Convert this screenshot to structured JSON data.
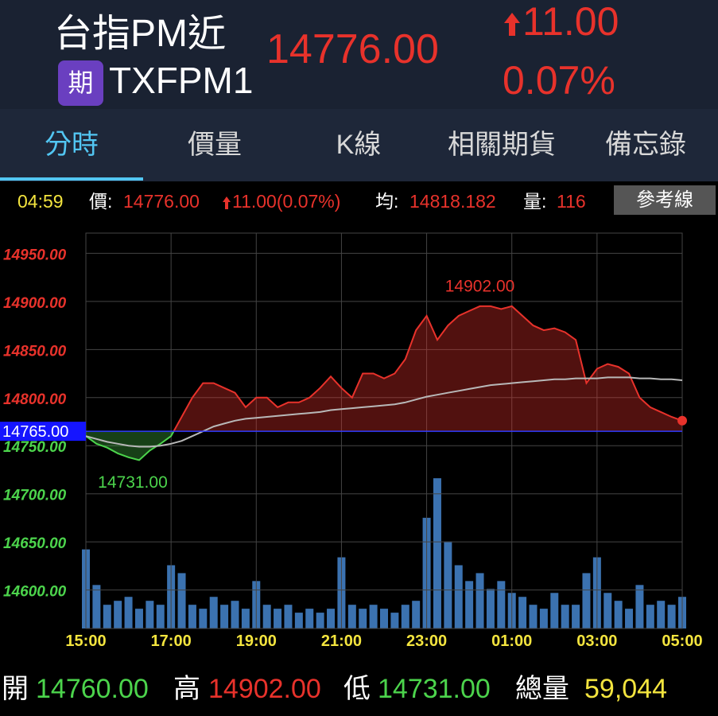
{
  "header": {
    "name": "台指PM近",
    "badge": "期",
    "code": "TXFPM1",
    "price": "14776.00",
    "change": "11.00",
    "change_pct": "0.07%"
  },
  "tabs": [
    "分時",
    "價量",
    "K線",
    "相關期貨",
    "備忘錄"
  ],
  "info": {
    "time": "04:59",
    "price_label": "價:",
    "price": "14776.00",
    "change": "11.00(0.07%)",
    "avg_label": "均:",
    "avg": "14818.182",
    "vol_label": "量:",
    "vol": "116",
    "button": "參考線"
  },
  "chart_data": {
    "type": "line",
    "categories": [
      "15:00",
      null,
      null,
      null,
      null,
      null,
      null,
      null,
      "17:00",
      null,
      null,
      null,
      null,
      null,
      null,
      null,
      "19:00",
      null,
      null,
      null,
      null,
      null,
      null,
      null,
      "21:00",
      null,
      null,
      null,
      null,
      null,
      null,
      null,
      "23:00",
      null,
      null,
      null,
      null,
      null,
      null,
      null,
      "01:00",
      null,
      null,
      null,
      null,
      null,
      null,
      null,
      "03:00",
      null,
      null,
      null,
      null,
      null,
      null,
      null,
      "05:00"
    ],
    "values": [
      14760,
      14752,
      14748,
      14742,
      14738,
      14735,
      14745,
      14752,
      14760,
      14780,
      14800,
      14815,
      14815,
      14810,
      14805,
      14790,
      14800,
      14800,
      14790,
      14795,
      14795,
      14800,
      14810,
      14822,
      14810,
      14800,
      14825,
      14825,
      14820,
      14825,
      14840,
      14870,
      14885,
      14860,
      14875,
      14885,
      14890,
      14895,
      14895,
      14892,
      14895,
      14885,
      14875,
      14870,
      14872,
      14868,
      14860,
      14815,
      14830,
      14835,
      14832,
      14825,
      14800,
      14790,
      14785,
      14780,
      14776
    ],
    "average_values": [
      14760,
      14757,
      14754,
      14752,
      14750,
      14749,
      14749,
      14750,
      14752,
      14755,
      14760,
      14765,
      14770,
      14773,
      14776,
      14778,
      14779,
      14780,
      14781,
      14782,
      14783,
      14784,
      14785,
      14787,
      14788,
      14789,
      14790,
      14791,
      14792,
      14793,
      14795,
      14798,
      14801,
      14803,
      14805,
      14807,
      14809,
      14811,
      14813,
      14814,
      14815,
      14816,
      14817,
      14818,
      14819,
      14819,
      14820,
      14820,
      14820,
      14821,
      14821,
      14821,
      14820,
      14820,
      14819,
      14819,
      14818
    ],
    "volume_values": [
      200,
      110,
      60,
      70,
      80,
      50,
      70,
      60,
      160,
      140,
      60,
      50,
      80,
      60,
      70,
      50,
      120,
      60,
      50,
      60,
      40,
      50,
      40,
      50,
      180,
      60,
      50,
      60,
      50,
      40,
      60,
      70,
      280,
      380,
      220,
      160,
      120,
      140,
      100,
      120,
      90,
      80,
      60,
      50,
      90,
      60,
      60,
      140,
      180,
      90,
      70,
      50,
      110,
      60,
      70,
      60,
      80
    ],
    "ylim": [
      14560,
      14971
    ],
    "yticks": [
      {
        "value": 14600,
        "label": "14600.00"
      },
      {
        "value": 14650,
        "label": "14650.00"
      },
      {
        "value": 14700,
        "label": "14700.00"
      },
      {
        "value": 14750,
        "label": "14750.00"
      },
      {
        "value": 14800,
        "label": "14800.00"
      },
      {
        "value": 14850,
        "label": "14850.00"
      },
      {
        "value": 14900,
        "label": "14900.00"
      },
      {
        "value": 14950,
        "label": "14950.00"
      }
    ],
    "y2lim": [
      0,
      1000
    ],
    "reference": {
      "value": 14765,
      "label": "14765.00"
    },
    "high": {
      "value": 14902,
      "label": "14902.00"
    },
    "low": {
      "value": 14731,
      "label": "14731.00"
    },
    "up_color": "#e8322b",
    "down_color": "#4cd44c",
    "average_color": "#b8b8b8",
    "volume_color": "#3b72b0",
    "reference_color": "#2f3cff",
    "grid": true
  },
  "footer": {
    "open_label": "開",
    "open": "14760.00",
    "high_label": "高",
    "high": "14902.00",
    "low_label": "低",
    "low": "14731.00",
    "vol_label": "總量",
    "vol": "59,044"
  }
}
